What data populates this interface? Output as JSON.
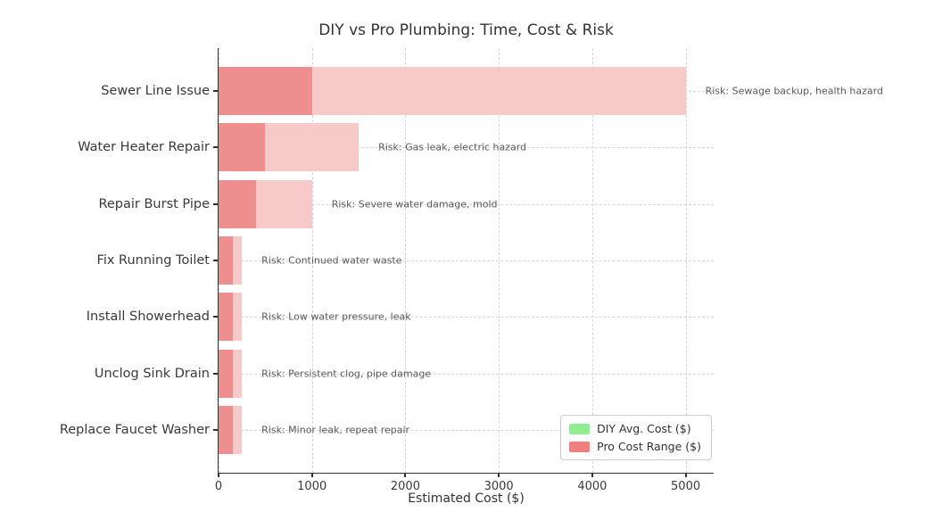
{
  "title": "DIY vs Pro Plumbing: Time, Cost & Risk",
  "chart_data": {
    "type": "bar",
    "orientation": "horizontal",
    "title": "DIY vs Pro Plumbing: Time, Cost & Risk",
    "xlabel": "Estimated Cost ($)",
    "ylabel": "",
    "xlim": [
      0,
      5300
    ],
    "xticks": [
      0,
      1000,
      2000,
      3000,
      4000,
      5000
    ],
    "grid": true,
    "categories": [
      "Sewer Line Issue",
      "Water Heater Repair",
      "Repair Burst Pipe",
      "Fix Running Toilet",
      "Install Showerhead",
      "Unclog Sink Drain",
      "Replace Faucet Washer"
    ],
    "series": [
      {
        "name": "Pro Cost Range ($)",
        "min_values": [
          1000,
          500,
          400,
          150,
          150,
          150,
          150
        ],
        "max_values": [
          5000,
          1500,
          1000,
          250,
          250,
          250,
          250
        ]
      }
    ],
    "annotations": [
      "Risk: Sewage backup, health hazard",
      "Risk: Gas leak, electric hazard",
      "Risk: Severe water damage, mold",
      "Risk: Continued water waste",
      "Risk: Low water pressure, leak",
      "Risk: Persistent clog, pipe damage",
      "Risk: Minor leak, repeat repair"
    ],
    "legend": {
      "position": "lower right",
      "entries": [
        {
          "label": "DIY Avg. Cost ($)",
          "color": "#90ee90"
        },
        {
          "label": "Pro Cost Range ($)",
          "color": "#f08080"
        }
      ]
    }
  },
  "colors": {
    "bar_range_fill": "#f8c9c9",
    "bar_min_overlay_fill": "#ee8e8e",
    "gridline": "#d7d7d7",
    "spine": "#333333",
    "annotation_text": "#595959",
    "legend_diy": "#90ee90",
    "legend_pro": "#f08080"
  }
}
